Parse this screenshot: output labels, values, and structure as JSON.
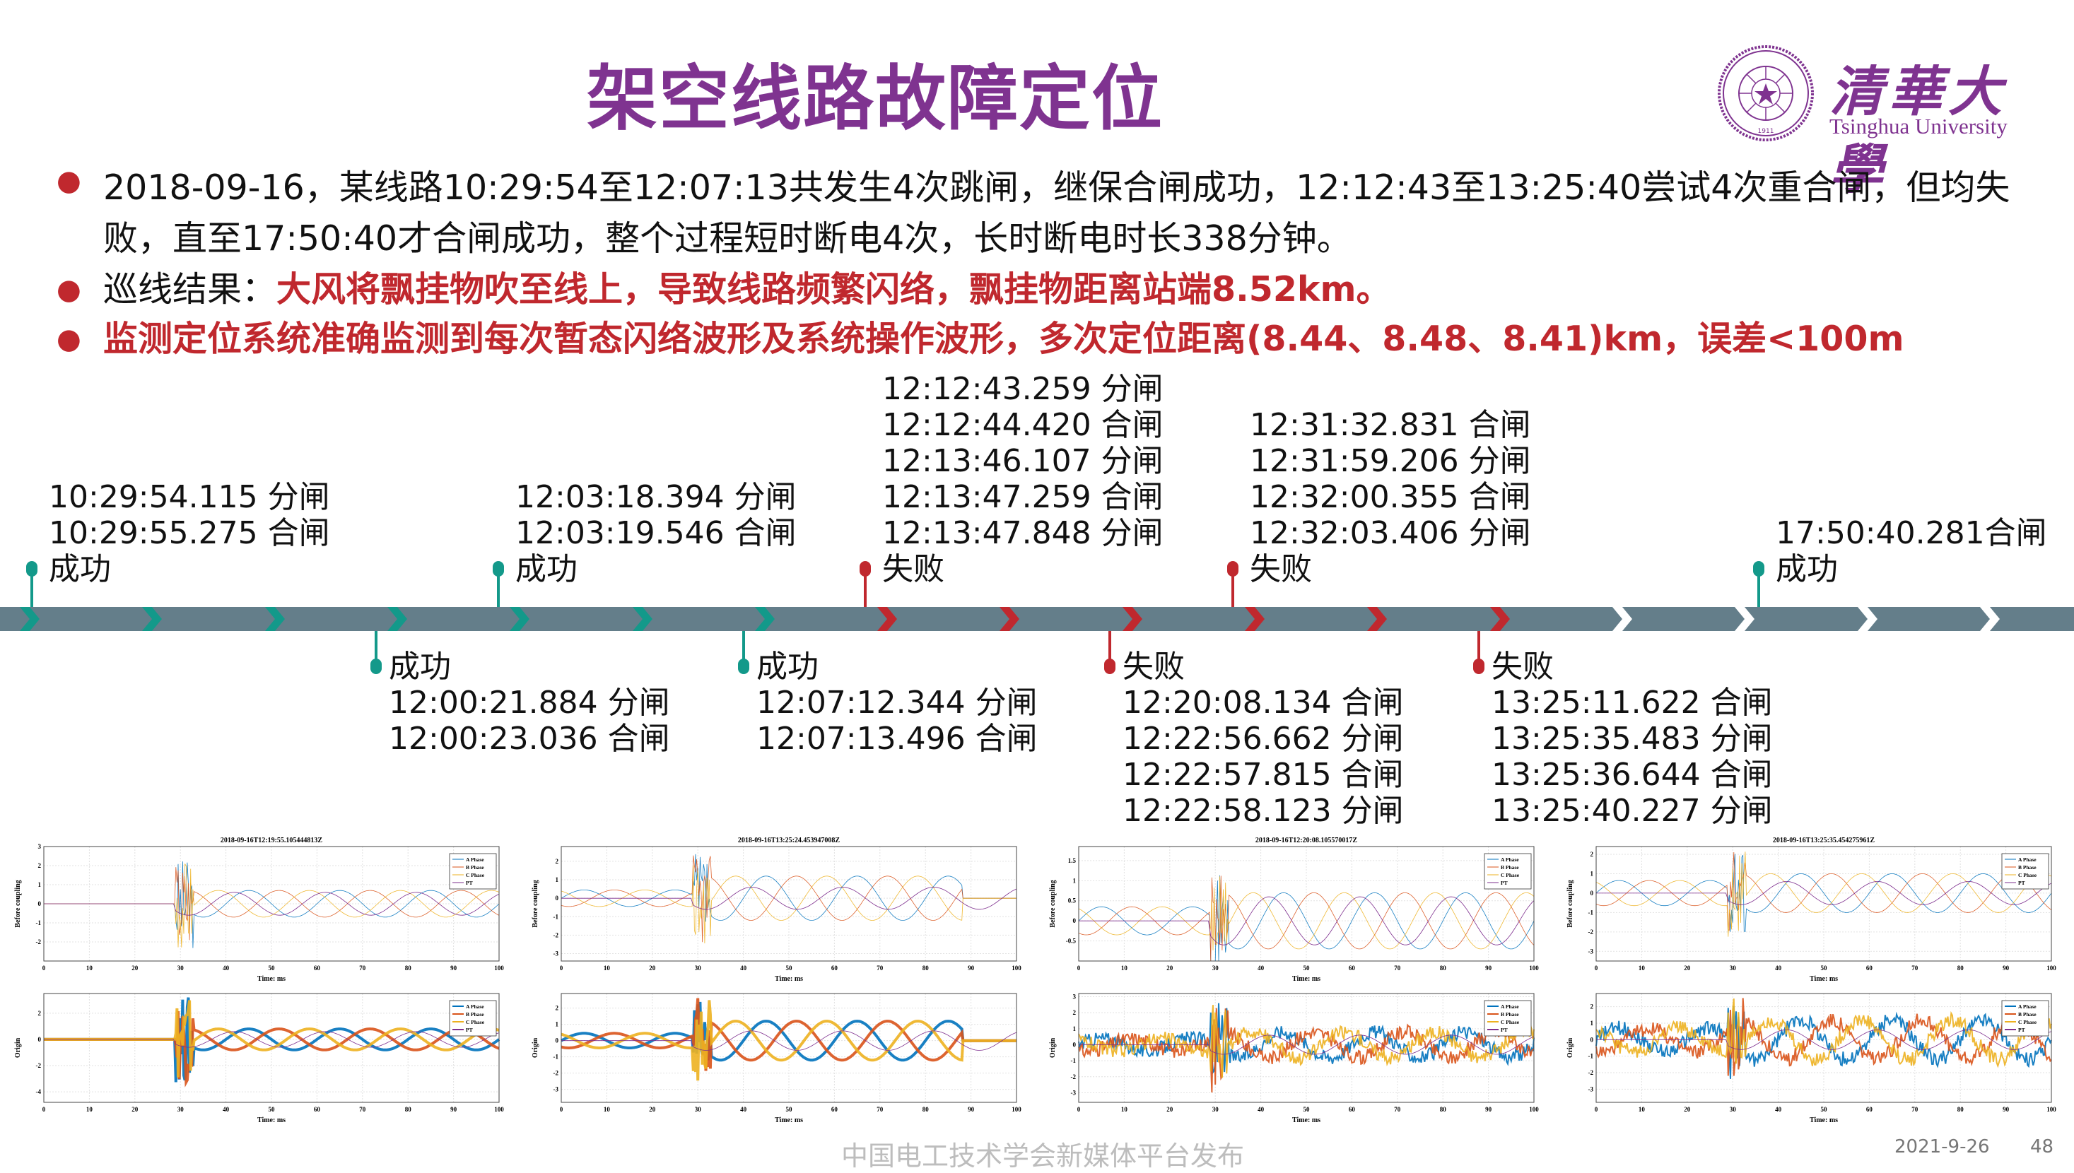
{
  "slide": {
    "title": "架空线路故障定位",
    "logo": {
      "cn": "清華大學",
      "en": "Tsinghua University",
      "seal_year": "1911"
    },
    "accent_color": "#7f3390",
    "alert_color": "#c0282e",
    "success_color": "#13998a",
    "bar_color": "#647e8a"
  },
  "bullets": [
    {
      "text": "2018-09-16，某线路10:29:54至12:07:13共发生4次跳闸，继保合闸成功，12:12:43至13:25:40尝试4次重合闸，但均失败，直至17:50:40才合闸成功，整个过程短时断电4次，长时断电时长338分钟。"
    },
    {
      "prefix": "巡线结果：",
      "highlight": "大风将飘挂物吹至线上，导致线路频繁闪络，飘挂物距离站端8.52km。"
    },
    {
      "highlight": "监测定位系统准确监测到每次暂态闪络波形及系统操作波形，多次定位距离(8.44、8.48、8.41)km，误差<100m"
    }
  ],
  "timeline": {
    "events": [
      {
        "pos": "above",
        "x": 45,
        "status": "成功",
        "type": "success",
        "lines": [
          "10:29:54.115 分闸",
          "10:29:55.275 合闸"
        ]
      },
      {
        "pos": "below",
        "x": 532,
        "status": "成功",
        "type": "success",
        "lines": [
          "12:00:21.884 分闸",
          "12:00:23.036 合闸"
        ]
      },
      {
        "pos": "above",
        "x": 705,
        "status": "成功",
        "type": "success",
        "lines": [
          "12:03:18.394 分闸",
          "12:03:19.546 合闸"
        ]
      },
      {
        "pos": "below",
        "x": 1052,
        "status": "成功",
        "type": "success",
        "lines": [
          "12:07:12.344 分闸",
          "12:07:13.496 合闸"
        ]
      },
      {
        "pos": "above",
        "x": 1224,
        "status": "失败",
        "type": "fail",
        "lines": [
          "12:12:43.259 分闸",
          "12:12:44.420 合闸",
          "12:13:46.107 分闸",
          "12:13:47.259 合闸",
          "12:13:47.848 分闸"
        ]
      },
      {
        "pos": "below",
        "x": 1570,
        "status": "失败",
        "type": "fail",
        "lines": [
          "12:20:08.134 合闸",
          "12:22:56.662 分闸",
          "12:22:57.815 合闸",
          "12:22:58.123 分闸"
        ]
      },
      {
        "pos": "above",
        "x": 1744,
        "status": "失败",
        "type": "fail",
        "lines": [
          "12:31:32.831 合闸",
          "12:31:59.206 分闸",
          "12:32:00.355 合闸",
          "12:32:03.406 分闸"
        ]
      },
      {
        "pos": "below",
        "x": 2092,
        "status": "失败",
        "type": "fail",
        "lines": [
          "13:25:11.622 合闸",
          "13:25:35.483 分闸",
          "13:25:36.644 合闸",
          "13:25:40.227 分闸"
        ]
      },
      {
        "pos": "above",
        "x": 2488,
        "status": "成功",
        "type": "success",
        "lines": [
          "17:50:40.281合闸"
        ]
      }
    ]
  },
  "chart_data": [
    {
      "type": "line",
      "title": "2018-09-16T12:19:55.105444813Z",
      "xlabel": "Time: ms",
      "ylabel": "Before coupling",
      "xlim": [
        0,
        100
      ],
      "ylim": [
        -3,
        3
      ],
      "yticks": [
        -2,
        -1,
        0,
        1,
        2,
        3
      ],
      "xticks": [
        0,
        10,
        20,
        30,
        40,
        50,
        60,
        70,
        80,
        90,
        100
      ],
      "legend": [
        "A Phase",
        "B Phase",
        "C Phase",
        "PT"
      ],
      "grid": true,
      "fault_ms": 29,
      "pre_amp": 0,
      "post_amp": 0.7,
      "variant": "thin"
    },
    {
      "type": "line",
      "title": "",
      "xlabel": "Time: ms",
      "ylabel": "Origin",
      "xlim": [
        0,
        100
      ],
      "ylim": [
        -4.8,
        3.5
      ],
      "yticks": [
        -4,
        -2,
        0,
        2
      ],
      "xticks": [
        0,
        10,
        20,
        30,
        40,
        50,
        60,
        70,
        80,
        90,
        100
      ],
      "legend": [
        "A Phase",
        "B Phase",
        "C Phase",
        "PT"
      ],
      "grid": true,
      "fault_ms": 29,
      "pre_amp": 0,
      "post_amp": 0.8,
      "variant": "thick"
    },
    {
      "type": "line",
      "title": "2018-09-16T13:25:24.453947008Z",
      "xlabel": "Time: ms",
      "ylabel": "Before coupling",
      "xlim": [
        0,
        100
      ],
      "ylim": [
        -3.4,
        2.8
      ],
      "yticks": [
        -3,
        -2,
        -1,
        0,
        1,
        2
      ],
      "xticks": [
        0,
        10,
        20,
        30,
        40,
        50,
        60,
        70,
        80,
        90,
        100
      ],
      "legend": [],
      "grid": true,
      "fault_ms": 29,
      "pre_amp": 0.45,
      "post_amp": 1.2,
      "end_ms": 88,
      "variant": "thin"
    },
    {
      "type": "line",
      "title": "",
      "xlabel": "Time: ms",
      "ylabel": "Origin",
      "xlim": [
        0,
        100
      ],
      "ylim": [
        -3.8,
        2.9
      ],
      "yticks": [
        -3,
        -2,
        -1,
        0,
        1,
        2
      ],
      "xticks": [
        0,
        10,
        20,
        30,
        40,
        50,
        60,
        70,
        80,
        90,
        100
      ],
      "legend": [],
      "grid": true,
      "fault_ms": 29,
      "pre_amp": 0.45,
      "post_amp": 1.2,
      "end_ms": 88,
      "variant": "thick"
    },
    {
      "type": "line",
      "title": "2018-09-16T12:20:08.105570017Z",
      "xlabel": "Time: ms",
      "ylabel": "Before coupling",
      "xlim": [
        0,
        100
      ],
      "ylim": [
        -1,
        1.85
      ],
      "yticks": [
        -0.5,
        0,
        0.5,
        1,
        1.5
      ],
      "xticks": [
        0,
        10,
        20,
        30,
        40,
        50,
        60,
        70,
        80,
        90,
        100
      ],
      "legend": [
        "A Phase",
        "B Phase",
        "C Phase",
        "PT"
      ],
      "grid": true,
      "fault_ms": 29,
      "pre_amp": 0.35,
      "post_amp": 0.7,
      "variant": "thin"
    },
    {
      "type": "line",
      "title": "",
      "xlabel": "Time: ms",
      "ylabel": "Origin",
      "xlim": [
        0,
        100
      ],
      "ylim": [
        -3.6,
        3.2
      ],
      "yticks": [
        -3,
        -2,
        -1,
        0,
        1,
        2,
        3
      ],
      "xticks": [
        0,
        10,
        20,
        30,
        40,
        50,
        60,
        70,
        80,
        90,
        100
      ],
      "legend": [
        "A Phase",
        "B Phase",
        "C Phase",
        "PT"
      ],
      "grid": true,
      "fault_ms": 29,
      "pre_amp": 0.4,
      "post_amp": 0.8,
      "variant": "noisy"
    },
    {
      "type": "line",
      "title": "2018-09-16T13:25:35.454275961Z",
      "xlabel": "Time: ms",
      "ylabel": "Before coupling",
      "xlim": [
        0,
        100
      ],
      "ylim": [
        -3.5,
        2.4
      ],
      "yticks": [
        -3,
        -2,
        -1,
        0,
        1,
        2
      ],
      "xticks": [
        0,
        10,
        20,
        30,
        40,
        50,
        60,
        70,
        80,
        90,
        100
      ],
      "legend": [
        "A Phase",
        "B Phase",
        "C Phase",
        "PT"
      ],
      "grid": true,
      "fault_ms": 29,
      "pre_amp": 0.65,
      "post_amp": 1.0,
      "variant": "thin"
    },
    {
      "type": "line",
      "title": "",
      "xlabel": "Time: ms",
      "ylabel": "Origin",
      "xlim": [
        0,
        100
      ],
      "ylim": [
        -3.8,
        2.8
      ],
      "yticks": [
        -3,
        -2,
        -1,
        0,
        1,
        2
      ],
      "xticks": [
        0,
        10,
        20,
        30,
        40,
        50,
        60,
        70,
        80,
        90,
        100
      ],
      "legend": [
        "A Phase",
        "B Phase",
        "C Phase",
        "PT"
      ],
      "grid": true,
      "fault_ms": 29,
      "pre_amp": 0.7,
      "post_amp": 1.2,
      "variant": "noisy"
    }
  ],
  "series_colors": {
    "A Phase": "#0072bd",
    "B Phase": "#d95319",
    "C Phase": "#edb120",
    "PT": "#7e2f8e"
  },
  "footer": {
    "center": "中国电工技术学会新媒体平台发布",
    "date": "2021-9-26",
    "page": "48"
  }
}
